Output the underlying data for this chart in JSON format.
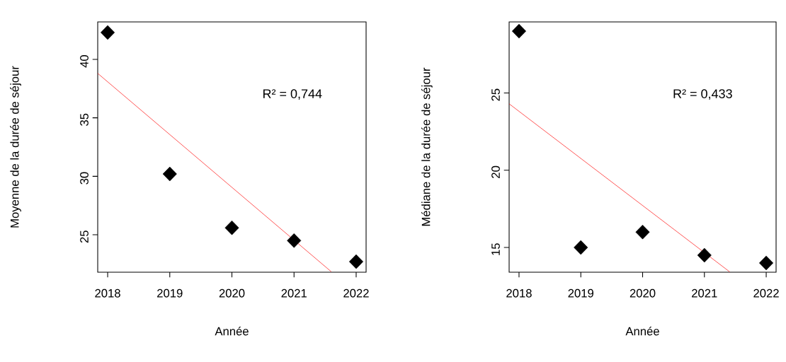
{
  "chart_data": [
    {
      "type": "scatter",
      "xlabel": "Année",
      "ylabel": "Moyenne de la durée de séjour",
      "x": [
        2018,
        2019,
        2020,
        2021,
        2022
      ],
      "xlim": [
        2017.84,
        2022.16
      ],
      "ylim": [
        21.8,
        43.2
      ],
      "xticks": [
        2018,
        2019,
        2020,
        2021,
        2022
      ],
      "yticks": [
        25,
        30,
        35,
        40
      ],
      "annotations": [
        "R² = 0,744"
      ],
      "series": [
        {
          "color": "#000000",
          "marker": "diamond",
          "values": [
            42.3,
            30.2,
            25.6,
            24.5,
            22.7
          ]
        },
        {
          "type": "line",
          "color": "#ff0000",
          "x": [
            2017.84,
            2021.6
          ],
          "values": [
            38.8,
            21.84
          ]
        }
      ]
    },
    {
      "type": "scatter",
      "xlabel": "Année",
      "ylabel": "Médiane de la durée de séjour",
      "x": [
        2018,
        2019,
        2020,
        2021,
        2022
      ],
      "xlim": [
        2017.84,
        2022.16
      ],
      "ylim": [
        13.4,
        29.6
      ],
      "xticks": [
        2018,
        2019,
        2020,
        2021,
        2022
      ],
      "yticks": [
        15,
        20,
        25
      ],
      "annotations": [
        "R² = 0,433"
      ],
      "series": [
        {
          "color": "#000000",
          "marker": "diamond",
          "values": [
            29,
            15,
            16,
            14.5,
            14
          ]
        },
        {
          "type": "line",
          "color": "#ff0000",
          "x": [
            2017.84,
            2021.41
          ],
          "values": [
            24.3,
            13.42
          ]
        }
      ]
    }
  ]
}
